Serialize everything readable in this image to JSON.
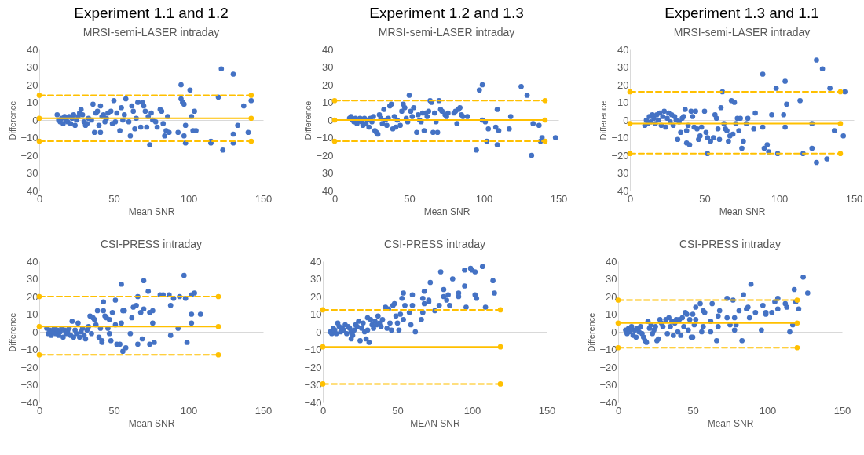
{
  "chart_data": [
    {
      "type": "scatter",
      "title": "Experiment 1.1 and 1.2",
      "subtitle": "MRSI-semi-LASER intraday",
      "xlabel": "Mean SNR",
      "ylabel": "Difference",
      "xlim": [
        0,
        150
      ],
      "xticks": [
        0,
        50,
        100,
        150
      ],
      "ylim": [
        -40,
        40
      ],
      "yticks": [
        -40,
        -30,
        -20,
        -10,
        0,
        10,
        20,
        30,
        40
      ],
      "marker": "circle",
      "series": [
        {
          "color": "#4472c4",
          "x": [
            12,
            13,
            14,
            15,
            16,
            17,
            18,
            19,
            20,
            21,
            22,
            23,
            24,
            25,
            26,
            27,
            28,
            29,
            30,
            31,
            32,
            33,
            35,
            36,
            37,
            38,
            39,
            40,
            41,
            41,
            42,
            43,
            44,
            45,
            46,
            48,
            49,
            50,
            51,
            52,
            54,
            55,
            56,
            57,
            58,
            60,
            61,
            62,
            63,
            64,
            65,
            66,
            68,
            69,
            70,
            71,
            72,
            73,
            74,
            75,
            76,
            78,
            79,
            81,
            82,
            83,
            84,
            85,
            86,
            87,
            93,
            95,
            95,
            96,
            97,
            97,
            98,
            98,
            101,
            102,
            103,
            104,
            105,
            115,
            115,
            120,
            122,
            123,
            130,
            130,
            130,
            133,
            137,
            140,
            142
          ],
          "values": [
            3,
            0,
            -1,
            1,
            -2,
            2,
            0,
            -1,
            2,
            -2,
            1,
            3,
            -3,
            0,
            2,
            4,
            6,
            3,
            -1,
            -3,
            -2,
            1,
            0,
            9,
            -7,
            4,
            5,
            -3,
            8,
            -7,
            2,
            3,
            -1,
            1,
            4,
            5,
            -2,
            11,
            -1,
            4,
            -6,
            7,
            0,
            3,
            12,
            -1,
            -9,
            8,
            5,
            -5,
            1,
            10,
            -4,
            10,
            8,
            5,
            -4,
            2,
            -14,
            4,
            0,
            -1,
            -4,
            6,
            5,
            -2,
            -9,
            -6,
            2,
            -7,
            -7,
            20,
            12,
            10,
            9,
            -9,
            -3,
            -13,
            17,
            2,
            -6,
            5,
            -6,
            -12,
            -13,
            13,
            29,
            -17,
            26,
            -8,
            -13,
            -3,
            8,
            -7,
            11
          ]
        },
        {
          "type": "line",
          "color": "#ffc000",
          "line_style": "dashed",
          "x": [
            0,
            142
          ],
          "values": [
            14,
            14
          ]
        },
        {
          "type": "line",
          "color": "#ffc000",
          "line_style": "solid",
          "x": [
            0,
            142
          ],
          "values": [
            1,
            1
          ]
        },
        {
          "type": "line",
          "color": "#ffc000",
          "line_style": "dashed",
          "x": [
            0,
            142
          ],
          "values": [
            -12,
            -12
          ]
        }
      ]
    },
    {
      "type": "scatter",
      "title": "Experiment 1.2 and 1.3",
      "subtitle": "MRSI-semi-LASER intraday",
      "xlabel": "Mean SNR",
      "ylabel": "Difference",
      "xlim": [
        0,
        150
      ],
      "xticks": [
        0,
        50,
        100,
        150
      ],
      "ylim": [
        -40,
        40
      ],
      "yticks": [
        -40,
        -30,
        -20,
        -10,
        0,
        10,
        20,
        30,
        40
      ],
      "marker": "circle",
      "series": [
        {
          "color": "#4472c4",
          "x": [
            10,
            11,
            12,
            13,
            14,
            15,
            16,
            17,
            18,
            19,
            20,
            21,
            22,
            23,
            24,
            25,
            26,
            27,
            28,
            29,
            30,
            31,
            32,
            33,
            34,
            35,
            36,
            37,
            38,
            39,
            40,
            41,
            42,
            44,
            45,
            46,
            47,
            48,
            49,
            50,
            51,
            52,
            53,
            55,
            56,
            57,
            58,
            59,
            60,
            61,
            62,
            63,
            64,
            65,
            66,
            67,
            68,
            69,
            70,
            71,
            72,
            74,
            75,
            76,
            80,
            81,
            82,
            83,
            84,
            85,
            86,
            89,
            95,
            97,
            99,
            99,
            101,
            102,
            103,
            108,
            109,
            109,
            110,
            117,
            118,
            125,
            129,
            132,
            133,
            137,
            138,
            139,
            148
          ],
          "values": [
            1,
            2,
            0,
            -1,
            1,
            -2,
            0,
            1,
            -1,
            -3,
            1,
            -2,
            0,
            -4,
            1,
            -1,
            2,
            -6,
            -7,
            -8,
            3,
            1,
            -2,
            6,
            0,
            -3,
            1,
            8,
            9,
            -5,
            2,
            -4,
            0,
            -3,
            5,
            9,
            7,
            1,
            -1,
            14,
            5,
            2,
            7,
            -7,
            3,
            0,
            -1,
            4,
            -6,
            4,
            2,
            5,
            11,
            10,
            -7,
            4,
            -1,
            -7,
            11,
            6,
            5,
            3,
            2,
            4,
            4,
            5,
            -2,
            6,
            7,
            3,
            2,
            2,
            -17,
            17,
            20,
            0,
            -1,
            -12,
            -5,
            -4,
            -14,
            6,
            -6,
            -5,
            2,
            19,
            14,
            -20,
            -2,
            -3,
            -12,
            -10,
            -10
          ]
        },
        {
          "type": "line",
          "color": "#ffc000",
          "line_style": "dashed",
          "x": [
            0,
            141
          ],
          "values": [
            11,
            11
          ]
        },
        {
          "type": "line",
          "color": "#ffc000",
          "line_style": "solid",
          "x": [
            0,
            141
          ],
          "values": [
            0,
            0
          ]
        },
        {
          "type": "line",
          "color": "#ffc000",
          "line_style": "dashed",
          "x": [
            0,
            141
          ],
          "values": [
            -12,
            -12
          ]
        }
      ]
    },
    {
      "type": "scatter",
      "title": "Experiment 1.3 and 1.1",
      "subtitle": "MRSI-semi-LASER intraday",
      "xlabel": "Mean SNR",
      "ylabel": "Difference",
      "xlim": [
        0,
        150
      ],
      "xticks": [
        0,
        50,
        100,
        150
      ],
      "ylim": [
        -40,
        40
      ],
      "yticks": [
        -40,
        -30,
        -20,
        -10,
        0,
        10,
        20,
        30,
        40
      ],
      "marker": "circle",
      "series": [
        {
          "color": "#4472c4",
          "x": [
            10,
            11,
            12,
            13,
            14,
            15,
            16,
            17,
            18,
            19,
            20,
            21,
            22,
            23,
            24,
            25,
            26,
            27,
            28,
            29,
            30,
            31,
            32,
            33,
            34,
            35,
            36,
            37,
            38,
            38,
            39,
            40,
            41,
            42,
            43,
            44,
            45,
            46,
            47,
            48,
            50,
            51,
            52,
            52,
            54,
            56,
            57,
            58,
            59,
            60,
            61,
            62,
            63,
            64,
            65,
            66,
            67,
            68,
            69,
            70,
            71,
            72,
            73,
            74,
            75,
            76,
            78,
            79,
            83,
            84,
            89,
            89,
            90,
            92,
            93,
            95,
            98,
            99,
            104,
            103,
            104,
            105,
            114,
            116,
            122,
            122,
            125,
            125,
            129,
            132,
            134,
            137,
            143,
            144
          ],
          "values": [
            -3,
            0,
            -2,
            2,
            -1,
            3,
            1,
            -2,
            3,
            0,
            4,
            -3,
            2,
            5,
            -4,
            1,
            4,
            -1,
            3,
            -3,
            2,
            0,
            -11,
            -1,
            -7,
            1,
            2,
            6,
            -6,
            -13,
            -3,
            -14,
            5,
            2,
            -4,
            5,
            -5,
            -11,
            -9,
            -4,
            5,
            -7,
            -10,
            -19,
            -12,
            -10,
            3,
            1,
            -5,
            -11,
            7,
            16,
            -2,
            -5,
            -6,
            -12,
            -9,
            11,
            -8,
            10,
            -2,
            1,
            -6,
            1,
            -16,
            -12,
            -2,
            1,
            -5,
            4,
            26,
            -4,
            -16,
            -14,
            -18,
            3,
            18,
            -19,
            22,
            3,
            -4,
            9,
            11,
            -19,
            -2,
            -16,
            34,
            -24,
            29,
            -22,
            18,
            -6,
            -9,
            16
          ]
        },
        {
          "type": "line",
          "color": "#ffc000",
          "line_style": "dashed",
          "x": [
            0,
            141
          ],
          "values": [
            16,
            16
          ]
        },
        {
          "type": "line",
          "color": "#ffc000",
          "line_style": "solid",
          "x": [
            0,
            141
          ],
          "values": [
            -2,
            -2
          ]
        },
        {
          "type": "line",
          "color": "#ffc000",
          "line_style": "dashed",
          "x": [
            0,
            141
          ],
          "values": [
            -19,
            -19
          ]
        }
      ]
    },
    {
      "type": "scatter",
      "title": "CSI-PRESS intraday",
      "xlabel": "Mean SNR",
      "ylabel": "Difference",
      "xlim": [
        0,
        150
      ],
      "xticks": [
        0,
        50,
        100,
        150
      ],
      "ylim": [
        -40,
        40
      ],
      "yticks": [
        -40,
        -30,
        -20,
        -10,
        0,
        10,
        20,
        30,
        40
      ],
      "marker": "circle",
      "series": [
        {
          "color": "#4472c4",
          "x": [
            5,
            6,
            7,
            8,
            9,
            10,
            11,
            12,
            13,
            14,
            15,
            16,
            17,
            18,
            19,
            20,
            21,
            22,
            23,
            24,
            25,
            26,
            27,
            28,
            29,
            30,
            31,
            32,
            33,
            34,
            35,
            36,
            37,
            38,
            39,
            40,
            41,
            42,
            42,
            43,
            43,
            44,
            45,
            46,
            47,
            47,
            48,
            49,
            51,
            51,
            52,
            54,
            55,
            55,
            56,
            56,
            57,
            58,
            61,
            62,
            63,
            65,
            66,
            66,
            68,
            69,
            70,
            70,
            73,
            74,
            74,
            76,
            76,
            77,
            81,
            83,
            87,
            88,
            88,
            90,
            93,
            94,
            97,
            99,
            98,
            102,
            102,
            102,
            104,
            108
          ],
          "values": [
            2,
            -1,
            1,
            -2,
            0,
            2,
            -1,
            1,
            -2,
            0,
            2,
            -3,
            1,
            -1,
            0,
            2,
            -2,
            6,
            -3,
            1,
            -1,
            5,
            -3,
            0,
            2,
            -2,
            -4,
            1,
            3,
            9,
            -1,
            8,
            7,
            4,
            12,
            -3,
            2,
            -6,
            -5,
            17,
            12,
            9,
            8,
            2,
            7,
            -1,
            -5,
            11,
            4,
            18,
            -7,
            -7,
            5,
            27,
            12,
            -11,
            12,
            -9,
            -1,
            8,
            14,
            15,
            20,
            -7,
            11,
            -4,
            29,
            13,
            23,
            11,
            -7,
            12,
            5,
            -6,
            21,
            21,
            21,
            -2,
            15,
            19,
            2,
            20,
            32,
            -6,
            19,
            21,
            10,
            5,
            22,
            10
          ]
        },
        {
          "type": "line",
          "color": "#ffc000",
          "line_style": "dashed",
          "x": [
            0,
            120
          ],
          "values": [
            20,
            20
          ]
        },
        {
          "type": "line",
          "color": "#ffc000",
          "line_style": "solid",
          "x": [
            0,
            120
          ],
          "values": [
            3,
            3
          ]
        },
        {
          "type": "line",
          "color": "#ffc000",
          "line_style": "dashed",
          "x": [
            0,
            120
          ],
          "values": [
            -13,
            -13
          ]
        }
      ]
    },
    {
      "type": "scatter",
      "title": "CSI-PRESS intraday",
      "xlabel": "MEAN SNR",
      "xlim": [
        0,
        150
      ],
      "xticks": [
        0,
        50,
        100,
        150
      ],
      "ylim": [
        -40,
        40
      ],
      "yticks": [
        -40,
        -30,
        -20,
        -10,
        0,
        10,
        20,
        30,
        40
      ],
      "marker": "circle",
      "series": [
        {
          "color": "#4472c4",
          "x": [
            5,
            6,
            7,
            8,
            9,
            10,
            11,
            12,
            13,
            14,
            15,
            16,
            17,
            18,
            19,
            19,
            20,
            21,
            22,
            23,
            24,
            25,
            26,
            27,
            28,
            29,
            30,
            30,
            31,
            32,
            33,
            34,
            35,
            36,
            37,
            38,
            39,
            40,
            42,
            43,
            44,
            45,
            46,
            47,
            48,
            49,
            50,
            51,
            52,
            53,
            54,
            54,
            55,
            58,
            59,
            60,
            60,
            62,
            66,
            67,
            67,
            68,
            68,
            71,
            71,
            72,
            75,
            78,
            79,
            81,
            81,
            83,
            84,
            85,
            87,
            91,
            91,
            95,
            95,
            96,
            99,
            100,
            102,
            102,
            103,
            107,
            109,
            114,
            115
          ],
          "values": [
            0,
            -1,
            2,
            1,
            -1,
            5,
            3,
            0,
            2,
            1,
            4,
            -1,
            3,
            2,
            0,
            -4,
            -2,
            1,
            4,
            3,
            6,
            -5,
            2,
            5,
            0,
            -4,
            1,
            8,
            -6,
            7,
            4,
            2,
            6,
            4,
            9,
            5,
            3,
            7,
            14,
            2,
            13,
            5,
            1,
            15,
            16,
            9,
            5,
            1,
            10,
            19,
            22,
            7,
            15,
            11,
            4,
            15,
            21,
            0,
            7,
            19,
            11,
            23,
            16,
            17,
            18,
            28,
            12,
            15,
            34,
            24,
            20,
            18,
            21,
            15,
            30,
            20,
            22,
            26,
            35,
            14,
            36,
            35,
            34,
            21,
            19,
            37,
            14,
            29,
            22
          ]
        },
        {
          "type": "line",
          "color": "#ffc000",
          "line_style": "dashed",
          "x": [
            0,
            119
          ],
          "values": [
            12.5,
            12.5
          ]
        },
        {
          "type": "line",
          "color": "#ffc000",
          "line_style": "solid",
          "x": [
            0,
            119
          ],
          "values": [
            -8.5,
            -8.5
          ]
        },
        {
          "type": "line",
          "color": "#ffc000",
          "line_style": "dashed",
          "x": [
            0,
            119
          ],
          "values": [
            -29.5,
            -29.5
          ]
        }
      ]
    },
    {
      "type": "scatter",
      "title": "CSI-PRESS intraday",
      "xlabel": "Mean SNR",
      "ylabel": "Difference",
      "xlim": [
        0,
        150
      ],
      "xticks": [
        0,
        50,
        100,
        150
      ],
      "ylim": [
        -40,
        40
      ],
      "yticks": [
        -40,
        -30,
        -20,
        -10,
        0,
        10,
        20,
        30,
        40
      ],
      "marker": "circle",
      "series": [
        {
          "color": "#4472c4",
          "x": [
            5,
            6,
            7,
            8,
            9,
            10,
            11,
            12,
            13,
            14,
            15,
            16,
            17,
            18,
            19,
            20,
            21,
            22,
            23,
            24,
            25,
            26,
            27,
            28,
            29,
            30,
            32,
            33,
            34,
            35,
            36,
            37,
            38,
            39,
            40,
            41,
            42,
            43,
            44,
            45,
            46,
            47,
            48,
            49,
            50,
            50,
            51,
            52,
            52,
            55,
            56,
            57,
            57,
            58,
            62,
            62,
            63,
            66,
            67,
            67,
            68,
            73,
            73,
            75,
            77,
            78,
            78,
            79,
            81,
            83,
            84,
            86,
            87,
            88,
            89,
            92,
            96,
            97,
            99,
            99,
            103,
            105,
            107,
            107,
            112,
            113,
            115,
            117,
            118,
            119,
            121,
            124,
            127
          ],
          "values": [
            1,
            -1,
            2,
            0,
            3,
            -2,
            1,
            -3,
            2,
            0,
            3,
            -1,
            -3,
            -5,
            -6,
            6,
            2,
            4,
            -1,
            1,
            3,
            -5,
            -4,
            7,
            5,
            3,
            7,
            -1,
            8,
            3,
            6,
            -2,
            5,
            7,
            0,
            7,
            -2,
            8,
            3,
            11,
            10,
            1,
            7,
            -3,
            -3,
            10,
            4,
            14,
            7,
            16,
            0,
            12,
            3,
            11,
            6,
            0,
            16,
            -5,
            3,
            9,
            12,
            8,
            19,
            4,
            18,
            1,
            8,
            4,
            12,
            -5,
            21,
            13,
            14,
            8,
            27,
            11,
            1,
            15,
            10,
            11,
            11,
            17,
            13,
            19,
            16,
            14,
            0,
            4,
            24,
            17,
            13,
            31,
            22
          ]
        },
        {
          "type": "line",
          "color": "#ffc000",
          "line_style": "dashed",
          "x": [
            0,
            120
          ],
          "values": [
            18,
            18
          ]
        },
        {
          "type": "line",
          "color": "#ffc000",
          "line_style": "solid",
          "x": [
            0,
            120
          ],
          "values": [
            5,
            5
          ]
        },
        {
          "type": "line",
          "color": "#ffc000",
          "line_style": "dashed",
          "x": [
            0,
            120
          ],
          "values": [
            -9,
            -9
          ]
        }
      ]
    }
  ]
}
